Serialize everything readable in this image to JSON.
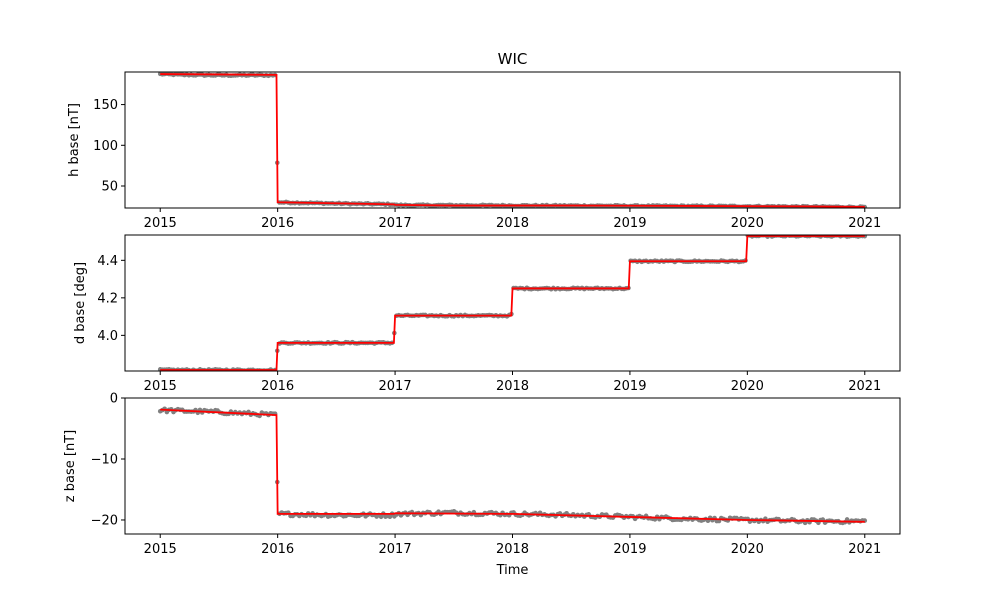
{
  "chart_data": {
    "title": "WIC",
    "xlabel": "Time",
    "x_ticks": [
      "2015",
      "2016",
      "2017",
      "2018",
      "2019",
      "2020",
      "2021"
    ],
    "colors": {
      "points": "#808080",
      "fit": "#ff0000"
    },
    "panels": [
      {
        "type": "scatter+line",
        "ylabel": "h base [nT]",
        "xlim": [
          2014.7,
          2021.3
        ],
        "ylim": [
          23,
          190
        ],
        "y_ticks": [
          "50",
          "100",
          "150"
        ],
        "y_tick_values": [
          50,
          100,
          150
        ],
        "points": {
          "anchors": [
            [
              2015.0,
              187.5
            ],
            [
              2015.2,
              186.5
            ],
            [
              2015.5,
              186.0
            ],
            [
              2015.99,
              186.0
            ],
            [
              2016.0,
              30
            ],
            [
              2016.5,
              28.5
            ],
            [
              2016.99,
              27.5
            ],
            [
              2017.0,
              26.5
            ],
            [
              2018.0,
              26.0
            ],
            [
              2019.0,
              25.5
            ],
            [
              2020.0,
              25.0
            ],
            [
              2021.0,
              24.0
            ]
          ],
          "noise": 0.8
        },
        "fit": [
          [
            2015.0,
            187.5
          ],
          [
            2015.99,
            186.5
          ],
          [
            2016.0,
            30
          ],
          [
            2016.99,
            27.5
          ],
          [
            2017.0,
            26.8
          ],
          [
            2017.5,
            26.0
          ],
          [
            2018.5,
            26.0
          ],
          [
            2019.5,
            25.5
          ],
          [
            2020.5,
            25.0
          ],
          [
            2021.0,
            24.3
          ]
        ]
      },
      {
        "type": "scatter+line",
        "ylabel": "d base [deg]",
        "xlim": [
          2014.7,
          2021.3
        ],
        "ylim": [
          3.81,
          4.535
        ],
        "y_ticks": [
          "4.0",
          "4.2",
          "4.4"
        ],
        "y_tick_values": [
          4.0,
          4.2,
          4.4
        ],
        "points": {
          "anchors": [
            [
              2015.0,
              3.815
            ],
            [
              2015.99,
              3.815
            ],
            [
              2016.0,
              3.96
            ],
            [
              2016.99,
              3.96
            ],
            [
              2017.0,
              4.105
            ],
            [
              2017.99,
              4.105
            ],
            [
              2018.0,
              4.25
            ],
            [
              2018.99,
              4.25
            ],
            [
              2019.0,
              4.395
            ],
            [
              2019.99,
              4.395
            ],
            [
              2020.0,
              4.53
            ],
            [
              2021.0,
              4.53
            ]
          ],
          "noise": 0.004
        },
        "fit": [
          [
            2015.0,
            3.815
          ],
          [
            2015.99,
            3.815
          ],
          [
            2016.0,
            3.96
          ],
          [
            2016.99,
            3.96
          ],
          [
            2017.0,
            4.105
          ],
          [
            2017.99,
            4.105
          ],
          [
            2018.0,
            4.25
          ],
          [
            2018.99,
            4.25
          ],
          [
            2019.0,
            4.395
          ],
          [
            2019.99,
            4.395
          ],
          [
            2020.0,
            4.53
          ],
          [
            2021.0,
            4.53
          ]
        ]
      },
      {
        "type": "scatter+line",
        "ylabel": "z base [nT]",
        "xlim": [
          2014.7,
          2021.3
        ],
        "ylim": [
          -22.3,
          0
        ],
        "y_ticks": [
          "−20",
          "−10",
          "0"
        ],
        "y_tick_values": [
          -20,
          -10,
          0
        ],
        "points": {
          "anchors": [
            [
              2015.0,
              -2.0
            ],
            [
              2015.5,
              -2.3
            ],
            [
              2015.99,
              -2.8
            ],
            [
              2016.0,
              -19.0
            ],
            [
              2016.5,
              -19.2
            ],
            [
              2016.99,
              -19.2
            ],
            [
              2017.0,
              -19.0
            ],
            [
              2017.5,
              -18.8
            ],
            [
              2018.0,
              -19.0
            ],
            [
              2018.5,
              -19.2
            ],
            [
              2019.0,
              -19.5
            ],
            [
              2019.5,
              -19.8
            ],
            [
              2020.0,
              -20.0
            ],
            [
              2020.5,
              -20.2
            ],
            [
              2021.0,
              -20.2
            ]
          ],
          "noise": 0.3
        },
        "fit": [
          [
            2015.0,
            -1.9
          ],
          [
            2015.99,
            -2.8
          ],
          [
            2016.0,
            -19.0
          ],
          [
            2016.99,
            -19.0
          ],
          [
            2017.0,
            -18.9
          ],
          [
            2018.0,
            -19.0
          ],
          [
            2019.0,
            -19.5
          ],
          [
            2020.0,
            -20.0
          ],
          [
            2021.0,
            -20.3
          ]
        ]
      }
    ]
  }
}
